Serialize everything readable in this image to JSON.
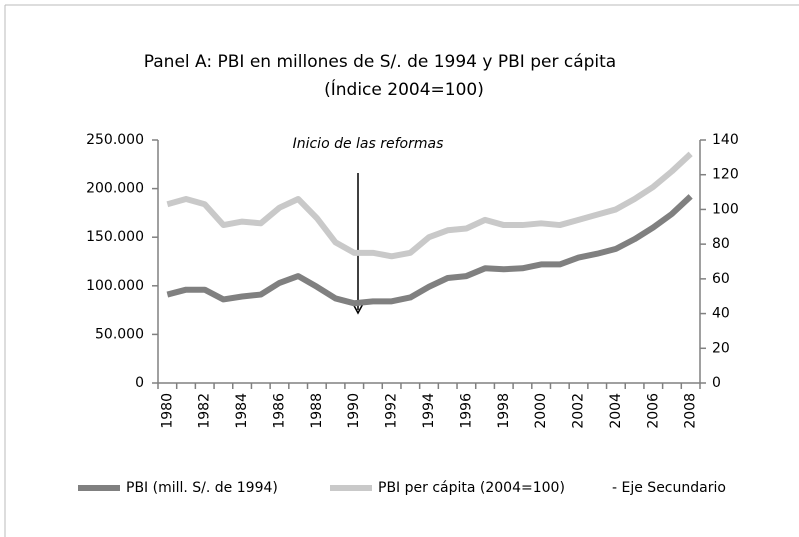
{
  "chart_data": {
    "type": "line",
    "title": "Panel A: PBI en millones de S/. de 1994 y PBI per cápita",
    "subtitle": "(Índice 2004=100)",
    "annotation": "Inicio de las reformas",
    "secondary_axis_label": "- Eje Secundario",
    "categories": [
      "1980",
      null,
      "1982",
      null,
      "1984",
      null,
      "1986",
      null,
      "1988",
      null,
      "1990",
      null,
      "1992",
      null,
      "1994",
      null,
      "1996",
      null,
      "1998",
      null,
      "2000",
      null,
      "2002",
      null,
      "2004",
      null,
      "2006",
      null,
      "2008"
    ],
    "series": [
      {
        "name": "PBI (mill. S/. de 1994)",
        "color": "#808080",
        "values": [
          91000,
          96000,
          96000,
          86000,
          89000,
          91000,
          103000,
          110000,
          99000,
          87000,
          82000,
          84000,
          84000,
          88000,
          99000,
          108000,
          110000,
          118000,
          117000,
          118000,
          122000,
          122000,
          129000,
          133000,
          138000,
          148000,
          160000,
          174000,
          192000
        ]
      },
      {
        "name": "PBI per cápita (2004=100)",
        "color": "#c9c9c9",
        "axis": "y2",
        "values": [
          103,
          106,
          103,
          91,
          93,
          92,
          101,
          106,
          95,
          81,
          75,
          75,
          73,
          75,
          84,
          88,
          89,
          94,
          91,
          91,
          92,
          91,
          94,
          97,
          100,
          106,
          113,
          122,
          132
        ]
      }
    ],
    "ylim": [
      0,
      250000
    ],
    "yticks": [
      0,
      {
        "value": 50000,
        "label": "50.000"
      },
      {
        "value": 100000,
        "label": "100.000"
      },
      {
        "value": 150000,
        "label": "150.000"
      },
      {
        "value": 200000,
        "label": "200.000"
      },
      {
        "value": 250000,
        "label": "250.000"
      }
    ],
    "y2lim": [
      0,
      140
    ],
    "y2ticks": [
      0,
      20,
      40,
      60,
      80,
      100,
      120,
      140
    ],
    "grid": false
  }
}
